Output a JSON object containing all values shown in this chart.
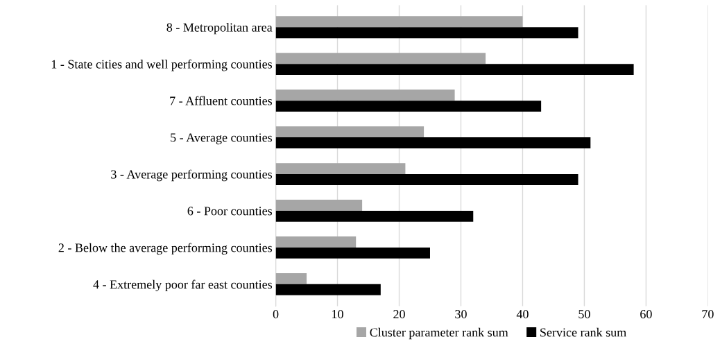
{
  "chart_data": {
    "type": "bar",
    "orientation": "horizontal",
    "categories": [
      "8 - Metropolitan area",
      "1 - State cities and well performing counties",
      "7 - Affluent counties",
      "5 - Average counties",
      "3 - Average performing counties",
      "6 - Poor counties",
      "2 - Below the average performing counties",
      "4 - Extremely poor far east counties"
    ],
    "series": [
      {
        "name": "Cluster parameter rank sum",
        "color": "#a6a6a6",
        "values": [
          40,
          34,
          29,
          24,
          21,
          14,
          13,
          5
        ]
      },
      {
        "name": "Service rank sum",
        "color": "#000000",
        "values": [
          49,
          58,
          43,
          51,
          49,
          32,
          25,
          17
        ]
      }
    ],
    "xlim": [
      0,
      70
    ],
    "xticks": [
      0,
      10,
      20,
      30,
      40,
      50,
      60,
      70
    ],
    "grid": "x",
    "legend": "bottom"
  }
}
